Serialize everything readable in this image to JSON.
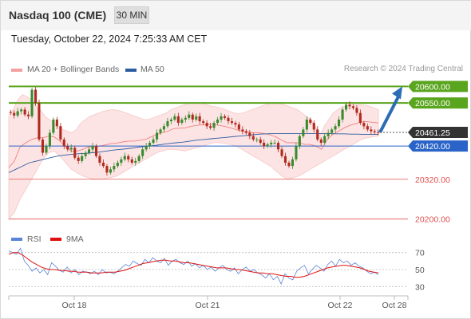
{
  "header": {
    "title": "Nasdaq 100 (CME)",
    "interval": "30 MIN"
  },
  "datetime": "Tuesday, October 22, 2024 7:25:33 AM CET",
  "legend": {
    "bb_label": "MA 20 + Bollinger Bands",
    "ma50_label": "MA 50",
    "rsi_label": "RSI",
    "rsi_ma_label": "9MA",
    "credit": "Research © 2024 Trading Central"
  },
  "colors": {
    "resistance": "#5aa51e",
    "support": "#2a64c8",
    "secondary": "#e05050",
    "current": "#333333",
    "bull": "#3a8a2e",
    "bear": "#b02a1e",
    "band_fill": "#fde4e4",
    "ma20": "#f08080",
    "ma50": "#2c5ca0",
    "rsi": "#5a84d6",
    "rsi_ma": "#e01010",
    "arrow": "#2c6cb4"
  },
  "chart_data": [
    {
      "type": "candlestick",
      "title": "Nasdaq 100 (CME)",
      "timeframe": "30 MIN",
      "x_labels": [
        "Oct 18",
        "Oct 21",
        "Oct 22",
        "Oct 28"
      ],
      "ylim": [
        20180,
        20620
      ],
      "levels": [
        {
          "label": "20600.00",
          "value": 20600,
          "kind": "resistance"
        },
        {
          "label": "20550.00",
          "value": 20550,
          "kind": "resistance"
        },
        {
          "label": "20461.25",
          "value": 20461.25,
          "kind": "current"
        },
        {
          "label": "20420.00",
          "value": 20420,
          "kind": "support"
        },
        {
          "label": "20320.00",
          "value": 20320,
          "kind": "secondary"
        },
        {
          "label": "20200.00",
          "value": 20200,
          "kind": "secondary"
        }
      ],
      "close": [
        20520,
        20512,
        20525,
        20530,
        20515,
        20510,
        20590,
        20550,
        20440,
        20400,
        20420,
        20460,
        20500,
        20480,
        20440,
        20420,
        20410,
        20415,
        20385,
        20375,
        20390,
        20400,
        20410,
        20420,
        20390,
        20370,
        20360,
        20340,
        20350,
        20360,
        20370,
        20380,
        20390,
        20380,
        20370,
        20375,
        20390,
        20410,
        20420,
        20430,
        20440,
        20460,
        20470,
        20480,
        20495,
        20500,
        20510,
        20490,
        20500,
        20505,
        20515,
        20500,
        20510,
        20495,
        20490,
        20480,
        20475,
        20490,
        20500,
        20510,
        20505,
        20495,
        20490,
        20485,
        20470,
        20465,
        20460,
        20450,
        20440,
        20440,
        20430,
        20420,
        20425,
        20430,
        20430,
        20410,
        20390,
        20370,
        20360,
        20380,
        20420,
        20450,
        20470,
        20500,
        20490,
        20470,
        20440,
        20430,
        20450,
        20460,
        20470,
        20480,
        20500,
        20530,
        20545,
        20540,
        20535,
        20520,
        20490,
        20480,
        20470,
        20465,
        20462,
        20461.25
      ],
      "upper_band": [
        20510,
        20530,
        20560,
        20575,
        20570,
        20560,
        20540,
        20530,
        20510,
        20500,
        20490,
        20480,
        20470,
        20465,
        20460,
        20470,
        20490,
        20500,
        20510,
        20515,
        20520,
        20525,
        20528,
        20530,
        20528,
        20525,
        20520,
        20515,
        20510,
        20505,
        20500,
        20500,
        20505,
        20510,
        20515,
        20520,
        20530,
        20535,
        20540,
        20545,
        20548,
        20550,
        20550,
        20548,
        20545,
        20540,
        20538,
        20535,
        20530,
        20525,
        20520,
        20518,
        20520,
        20525,
        20530,
        20535,
        20540,
        20545,
        20548,
        20550,
        20548,
        20545,
        20540,
        20535,
        20530,
        20520,
        20510,
        20500,
        20480,
        20450,
        20480,
        20500,
        20520,
        20530,
        20540,
        20540,
        20545,
        20545,
        20545,
        20543,
        20540,
        20535,
        20530
      ],
      "lower_band": [
        20200,
        20220,
        20260,
        20290,
        20320,
        20350,
        20380,
        20400,
        20405,
        20390,
        20370,
        20350,
        20340,
        20330,
        20325,
        20320,
        20320,
        20322,
        20325,
        20330,
        20340,
        20350,
        20360,
        20370,
        20380,
        20390,
        20400,
        20405,
        20410,
        20410,
        20408,
        20405,
        20410,
        20415,
        20420,
        20425,
        20430,
        20430,
        20428,
        20425,
        20420,
        20410,
        20400,
        20390,
        20380,
        20370,
        20360,
        20345,
        20330,
        20320,
        20325,
        20330,
        20340,
        20350,
        20360,
        20370,
        20380,
        20390,
        20400,
        20410,
        20420,
        20430,
        20440,
        20445,
        20448,
        20450
      ],
      "ma50": [
        20340,
        20350,
        20360,
        20370,
        20375,
        20380,
        20385,
        20390,
        20393,
        20395,
        20397,
        20398,
        20400,
        20402,
        20405,
        20408,
        20410,
        20412,
        20415,
        20418,
        20420,
        20422,
        20425,
        20428,
        20430,
        20432,
        20435,
        20438,
        20440,
        20442,
        20444,
        20446,
        20448,
        20450,
        20452,
        20454,
        20456,
        20457,
        20458,
        20458,
        20458,
        20458,
        20458,
        20458,
        20458,
        20458,
        20458,
        20457,
        20457,
        20456,
        20456,
        20455,
        20455,
        20455
      ],
      "arrow_target": 20600
    },
    {
      "type": "line",
      "title": "RSI",
      "yticks": [
        70,
        50,
        30
      ],
      "ylim": [
        20,
        80
      ],
      "series": [
        {
          "name": "RSI",
          "values": [
            72,
            70,
            68,
            75,
            60,
            55,
            48,
            52,
            46,
            50,
            44,
            58,
            54,
            49,
            47,
            53,
            46,
            50,
            44,
            48,
            47,
            45,
            48,
            44,
            50,
            46,
            47,
            45,
            48,
            52,
            56,
            54,
            60,
            57,
            55,
            62,
            58,
            64,
            60,
            58,
            63,
            55,
            60,
            62,
            58,
            56,
            60,
            54,
            57,
            52,
            55,
            50,
            53,
            48,
            52,
            55,
            50,
            48,
            52,
            45,
            50,
            53,
            48,
            50,
            46,
            44,
            40,
            45,
            38,
            42,
            33,
            45,
            40,
            38,
            48,
            52,
            55,
            45,
            50,
            55,
            52,
            48,
            56,
            60,
            54,
            62,
            58,
            60,
            55,
            58,
            54,
            52,
            48,
            45,
            47,
            44
          ],
          "smoothing": 1
        },
        {
          "name": "9MA",
          "values": [
            68,
            70,
            70,
            67,
            63,
            59,
            56,
            53,
            51,
            50,
            50,
            49,
            49,
            48,
            48,
            47,
            47,
            47,
            46,
            46,
            46,
            47,
            47,
            47,
            48,
            49,
            51,
            53,
            55,
            57,
            58,
            59,
            60,
            61,
            61,
            60,
            60,
            59,
            58,
            58,
            57,
            56,
            55,
            54,
            53,
            52,
            52,
            52,
            51,
            50,
            50,
            49,
            48,
            47,
            46,
            46,
            45,
            45,
            44,
            43,
            42,
            42,
            41,
            41,
            42,
            44,
            46,
            48,
            50,
            52,
            53,
            54,
            55,
            55,
            54,
            53,
            52,
            50,
            48,
            47,
            46
          ],
          "smoothing": 1
        }
      ]
    }
  ]
}
